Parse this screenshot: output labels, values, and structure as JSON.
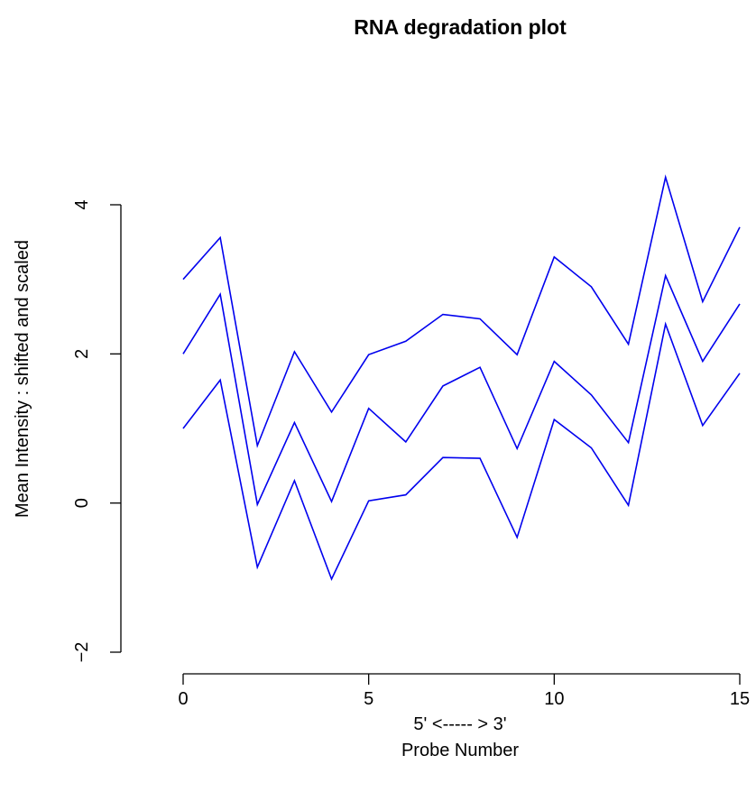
{
  "chart_data": {
    "type": "line",
    "title": "RNA degradation plot",
    "xlabel_line1": "5' <----- > 3'",
    "xlabel_line2": "Probe Number",
    "ylabel": "Mean Intensity : shifted and scaled",
    "xlim": [
      0,
      15
    ],
    "ylim": [
      -2,
      4
    ],
    "x_ticks": [
      0,
      5,
      10,
      15
    ],
    "y_ticks": [
      -2,
      0,
      2,
      4
    ],
    "x_tick_labels": [
      "0",
      "5",
      "10",
      "15"
    ],
    "y_tick_labels": [
      "−2",
      "0",
      "2",
      "4"
    ],
    "grid": false,
    "line_color": "#0000ee",
    "x": [
      0,
      1,
      2,
      3,
      4,
      5,
      6,
      7,
      8,
      9,
      10,
      11,
      12,
      13,
      14,
      15
    ],
    "series": [
      {
        "values": [
          3.0,
          3.56,
          0.77,
          2.03,
          1.22,
          1.99,
          2.17,
          2.53,
          2.47,
          1.99,
          3.3,
          2.9,
          2.13,
          4.37,
          2.7,
          3.7
        ]
      },
      {
        "values": [
          2.0,
          2.8,
          -0.02,
          1.08,
          0.02,
          1.27,
          0.82,
          1.57,
          1.82,
          0.73,
          1.9,
          1.45,
          0.81,
          3.05,
          1.9,
          2.67
        ]
      },
      {
        "values": [
          1.0,
          1.65,
          -0.86,
          0.3,
          -1.02,
          0.03,
          0.11,
          0.61,
          0.6,
          -0.46,
          1.12,
          0.74,
          -0.03,
          2.4,
          1.04,
          1.74
        ]
      }
    ]
  }
}
